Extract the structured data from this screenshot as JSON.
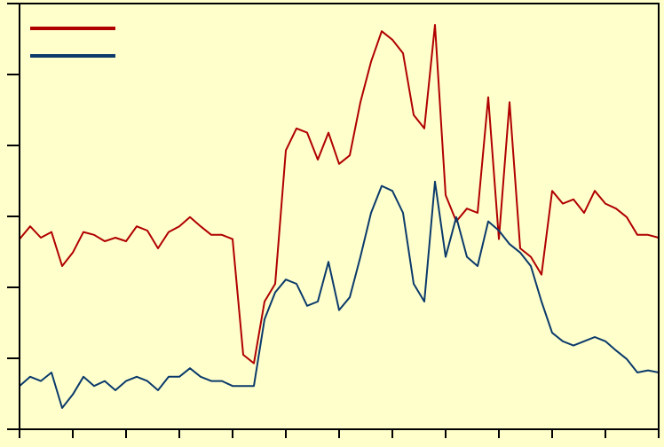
{
  "chart_data": {
    "type": "line",
    "background": "#ffffcc",
    "legend": "upper left",
    "xlim": [
      0,
      12
    ],
    "xticks": [
      0,
      1,
      2,
      3,
      4,
      5,
      6,
      7,
      8,
      9,
      10,
      11,
      12
    ],
    "ylim": [
      0,
      6
    ],
    "yticks": [
      0,
      1,
      2,
      3,
      4,
      5,
      6
    ],
    "x": [
      0,
      0.2,
      0.4,
      0.6,
      0.8,
      1,
      1.2,
      1.4,
      1.6,
      1.8,
      2,
      2.2,
      2.4,
      2.6,
      2.8,
      3,
      3.2,
      3.4,
      3.6,
      3.8,
      4,
      4.2,
      4.4,
      4.6,
      4.8,
      5,
      5.2,
      5.4,
      5.6,
      5.8,
      6,
      6.2,
      6.4,
      6.6,
      6.8,
      7,
      7.2,
      7.4,
      7.6,
      7.8,
      8,
      8.2,
      8.4,
      8.6,
      8.8,
      9,
      9.2,
      9.4,
      9.6,
      9.8,
      10,
      10.2,
      10.4,
      10.6,
      10.8,
      11,
      11.2,
      11.4,
      11.6,
      11.8,
      12
    ],
    "series": [
      {
        "color": "#b00000",
        "values": [
          2.68,
          2.86,
          2.7,
          2.78,
          2.3,
          2.49,
          2.78,
          2.74,
          2.65,
          2.7,
          2.65,
          2.86,
          2.8,
          2.55,
          2.78,
          2.86,
          2.99,
          2.86,
          2.74,
          2.74,
          2.68,
          1.05,
          0.93,
          1.8,
          2.05,
          3.93,
          4.24,
          4.18,
          3.8,
          4.18,
          3.74,
          3.86,
          4.61,
          5.18,
          5.61,
          5.49,
          5.3,
          4.43,
          4.24,
          5.7,
          3.3,
          2.93,
          3.11,
          3.05,
          4.68,
          2.68,
          4.61,
          2.55,
          2.43,
          2.18,
          3.36,
          3.18,
          3.24,
          3.05,
          3.36,
          3.18,
          3.11,
          2.99,
          2.74,
          2.74,
          2.7
        ]
      },
      {
        "color": "#0b3a6b",
        "values": [
          0.61,
          0.74,
          0.68,
          0.8,
          0.3,
          0.49,
          0.74,
          0.61,
          0.68,
          0.55,
          0.68,
          0.74,
          0.68,
          0.55,
          0.74,
          0.74,
          0.86,
          0.74,
          0.68,
          0.68,
          0.61,
          0.61,
          0.61,
          1.55,
          1.93,
          2.11,
          2.05,
          1.74,
          1.8,
          2.36,
          1.68,
          1.86,
          2.43,
          3.05,
          3.43,
          3.36,
          3.05,
          2.05,
          1.8,
          3.49,
          2.43,
          2.99,
          2.43,
          2.3,
          2.93,
          2.8,
          2.61,
          2.49,
          2.3,
          1.8,
          1.36,
          1.24,
          1.18,
          1.24,
          1.3,
          1.24,
          1.11,
          0.99,
          0.8,
          0.83,
          0.8
        ]
      }
    ]
  }
}
